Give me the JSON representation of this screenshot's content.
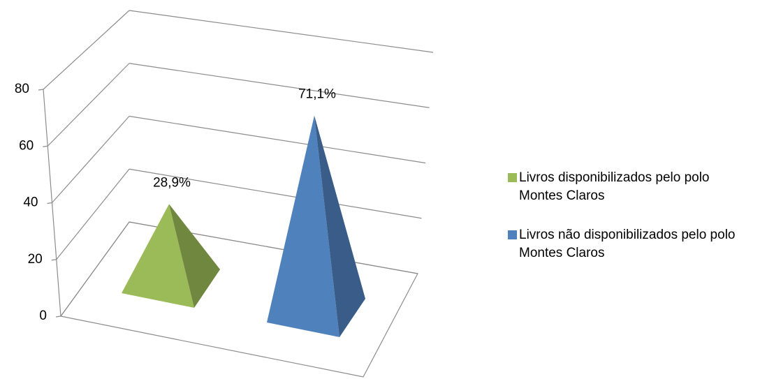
{
  "chart_data": {
    "type": "pyramid3d",
    "series": [
      {
        "name": "Livros disponibilizados pelo polo Montes Claros",
        "color": "#9bbb59",
        "values": [
          28.9
        ],
        "value_labels": [
          "28,9%"
        ]
      },
      {
        "name": "Livros não disponibilizados pelo polo Montes Claros",
        "color": "#4f81bd",
        "values": [
          71.1
        ],
        "value_labels": [
          "71,1%"
        ]
      }
    ],
    "ylim": [
      0,
      80
    ],
    "yticks": [
      0,
      20,
      40,
      60,
      80
    ],
    "grid": true,
    "legend": "right"
  }
}
